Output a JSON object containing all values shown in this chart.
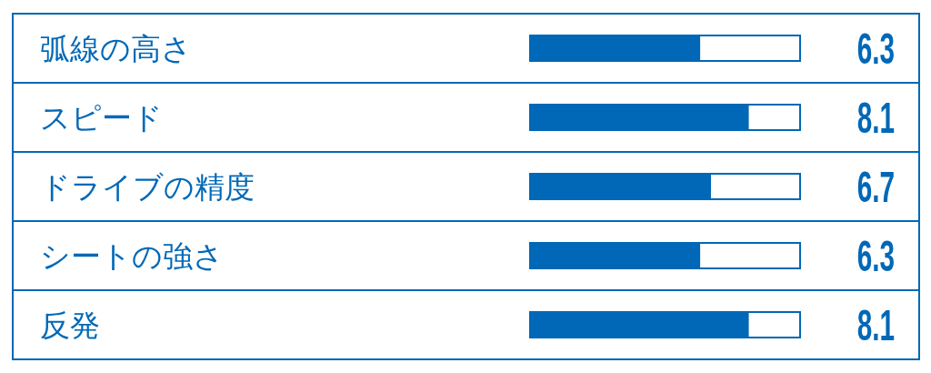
{
  "chart_data": {
    "type": "bar",
    "orientation": "horizontal",
    "categories": [
      "弧線の高さ",
      "スピード",
      "ドライブの精度",
      "シートの強さ",
      "反発"
    ],
    "values": [
      6.3,
      8.1,
      6.7,
      6.3,
      8.1
    ],
    "color": "#0068b7",
    "xlim": [
      0,
      10
    ],
    "data_labels": true,
    "tick_labels": "y"
  }
}
